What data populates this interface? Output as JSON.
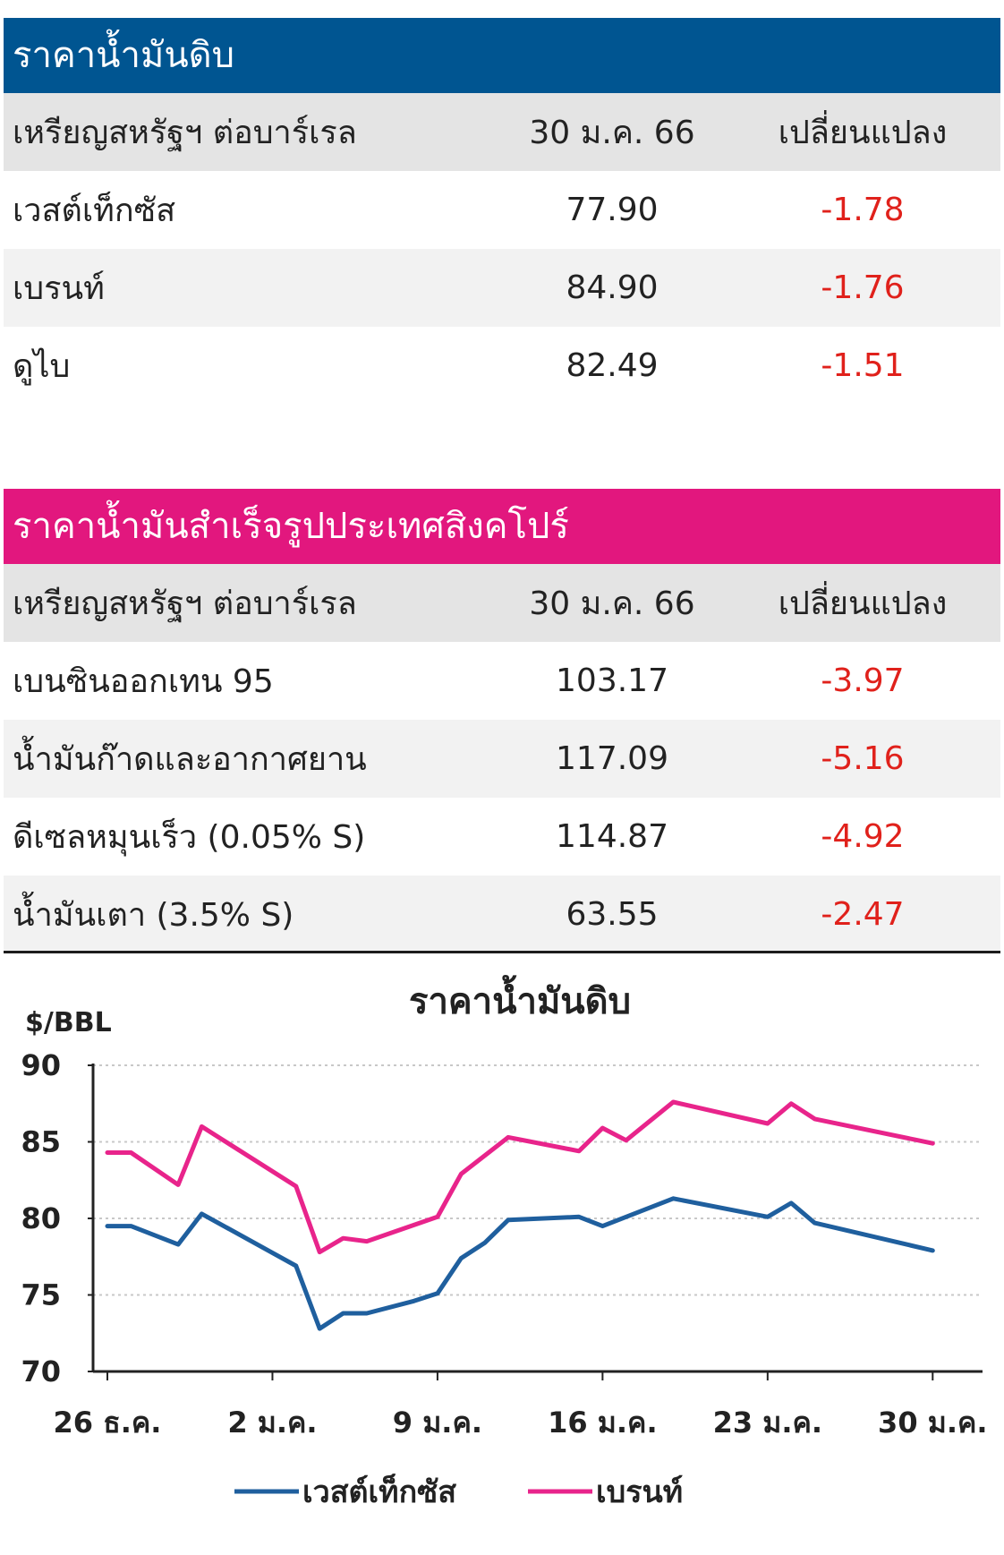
{
  "crude_table": {
    "title": "ราคาน้ำมันดิบ",
    "header": {
      "unit": "เหรียญสหรัฐฯ ต่อบาร์เรล",
      "date": "30 ม.ค. 66",
      "change": "เปลี่ยนแปลง"
    },
    "rows": [
      {
        "name": "เวสต์เท็กซัส",
        "value": "77.90",
        "change": "-1.78"
      },
      {
        "name": "เบรนท์",
        "value": "84.90",
        "change": "-1.76"
      },
      {
        "name": "ดูไบ",
        "value": "82.49",
        "change": "-1.51"
      }
    ]
  },
  "refined_table": {
    "title": "ราคาน้ำมันสำเร็จรูปประเทศสิงคโปร์",
    "header": {
      "unit": "เหรียญสหรัฐฯ ต่อบาร์เรล",
      "date": "30 ม.ค. 66",
      "change": "เปลี่ยนแปลง"
    },
    "rows": [
      {
        "name": "เบนซินออกเทน 95",
        "value": "103.17",
        "change": "-3.97"
      },
      {
        "name": "น้ำมันก๊าดและอากาศยาน",
        "value": "117.09",
        "change": "-5.16"
      },
      {
        "name": "ดีเซลหมุนเร็ว (0.05% S)",
        "value": "114.87",
        "change": "-4.92"
      },
      {
        "name": "น้ำมันเตา (3.5% S)",
        "value": "63.55",
        "change": "-2.47"
      }
    ]
  },
  "colors": {
    "crude_title_bg": "#005591",
    "refined_title_bg": "#e2177e",
    "negative": "#e0211b",
    "wti_line": "#1f5f9e",
    "brent_line": "#e8248b"
  },
  "chart_data": {
    "type": "line",
    "title": "ราคาน้ำมันดิบ",
    "ylabel": "$/BBL",
    "xlabel": "",
    "ylim": [
      70,
      90
    ],
    "yticks": [
      90,
      85,
      80,
      75,
      70
    ],
    "xlim": [
      0,
      37
    ],
    "xticks": [
      {
        "x": 0,
        "label": "26 ธ.ค."
      },
      {
        "x": 7,
        "label": "2 ม.ค."
      },
      {
        "x": 14,
        "label": "9 ม.ค."
      },
      {
        "x": 21,
        "label": "16 ม.ค."
      },
      {
        "x": 28,
        "label": "23 ม.ค."
      },
      {
        "x": 35,
        "label": "30 ม.ค."
      }
    ],
    "grid": true,
    "legend_position": "bottom",
    "series": [
      {
        "name": "เวสต์เท็กซัส",
        "color": "#1f5f9e",
        "points": [
          [
            0,
            79.5
          ],
          [
            1,
            79.5
          ],
          [
            3,
            78.3
          ],
          [
            4,
            80.3
          ],
          [
            8,
            76.9
          ],
          [
            9,
            72.8
          ],
          [
            10,
            73.8
          ],
          [
            11,
            73.8
          ],
          [
            13,
            74.6
          ],
          [
            14,
            75.1
          ],
          [
            15,
            77.4
          ],
          [
            16,
            78.4
          ],
          [
            17,
            79.9
          ],
          [
            20,
            80.1
          ],
          [
            21,
            79.5
          ],
          [
            24,
            81.3
          ],
          [
            28,
            80.1
          ],
          [
            29,
            81.0
          ],
          [
            30,
            79.7
          ],
          [
            35,
            77.9
          ]
        ]
      },
      {
        "name": "เบรนท์",
        "color": "#e8248b",
        "points": [
          [
            0,
            84.3
          ],
          [
            1,
            84.3
          ],
          [
            3,
            82.2
          ],
          [
            4,
            86.0
          ],
          [
            8,
            82.1
          ],
          [
            9,
            77.8
          ],
          [
            10,
            78.7
          ],
          [
            11,
            78.5
          ],
          [
            14,
            80.1
          ],
          [
            15,
            82.9
          ],
          [
            17,
            85.3
          ],
          [
            20,
            84.4
          ],
          [
            21,
            85.9
          ],
          [
            22,
            85.1
          ],
          [
            24,
            87.6
          ],
          [
            28,
            86.2
          ],
          [
            29,
            87.5
          ],
          [
            30,
            86.5
          ],
          [
            35,
            84.9
          ]
        ]
      }
    ]
  }
}
